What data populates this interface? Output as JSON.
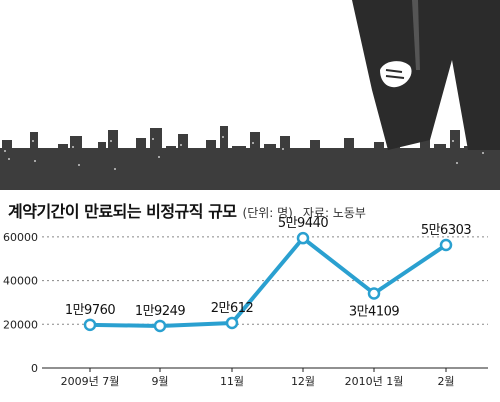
{
  "header": {
    "title": "계약기간이 만료되는 비정규직 규모",
    "unit": "(단위: 명)",
    "source": "자료: 노동부"
  },
  "illustration": {
    "description_icons": [
      "city-skyline-icon",
      "businessman-silhouette-icon"
    ],
    "colors": {
      "sky": "#ffffff",
      "city": "#3b3b3b",
      "figure": "#2a2a2a"
    }
  },
  "chart_data": {
    "type": "line",
    "title": "계약기간이 만료되는 비정규직 규모",
    "unit_label": "(단위: 명)",
    "source": "자료: 노동부",
    "categories": [
      "2009년 7월",
      "9월",
      "11월",
      "12월",
      "2010년 1월",
      "2월"
    ],
    "series": [
      {
        "values": [
          19760,
          19249,
          20612,
          59440,
          34109,
          56303
        ],
        "labels": [
          "1만9760",
          "1만9249",
          "2만612",
          "5만9440",
          "3만4109",
          "5만6303"
        ],
        "color": "#2aa0d0"
      }
    ],
    "ylim": [
      0,
      65000
    ],
    "yticks": [
      0,
      20000,
      40000,
      60000
    ],
    "ytick_labels": [
      "0",
      "20000",
      "40000",
      "60000"
    ],
    "grid": "dotted-horizontal"
  }
}
